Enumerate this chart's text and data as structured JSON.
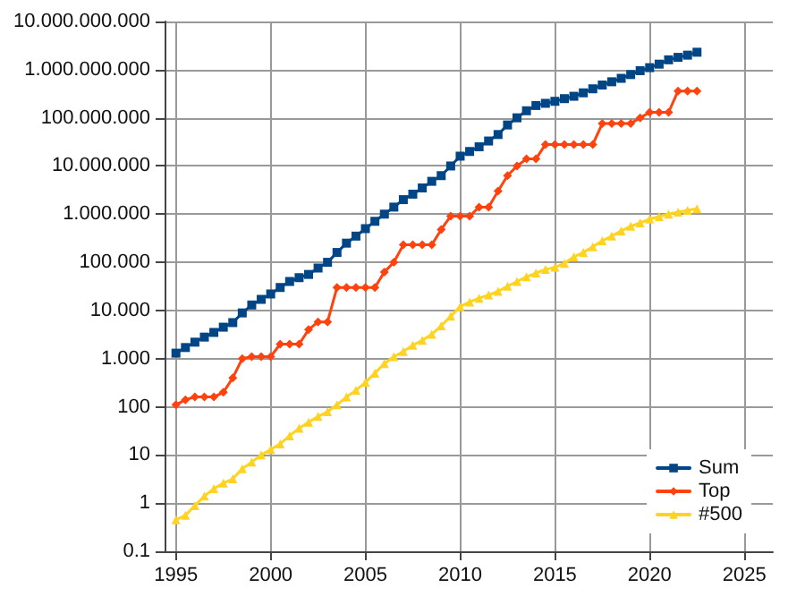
{
  "chart_data": {
    "type": "line",
    "x": [
      1995,
      1995.5,
      1996,
      1996.5,
      1997,
      1997.5,
      1998,
      1998.5,
      1999,
      1999.5,
      2000,
      2000.5,
      2001,
      2001.5,
      2002,
      2002.5,
      2003,
      2003.5,
      2004,
      2004.5,
      2005,
      2005.5,
      2006,
      2006.5,
      2007,
      2007.5,
      2008,
      2008.5,
      2009,
      2009.5,
      2010,
      2010.5,
      2011,
      2011.5,
      2012,
      2012.5,
      2013,
      2013.5,
      2014,
      2014.5,
      2015,
      2015.5,
      2016,
      2016.5,
      2017,
      2017.5,
      2018,
      2018.5,
      2019,
      2019.5,
      2020,
      2020.5,
      2021,
      2021.5,
      2022,
      2022.5
    ],
    "series": [
      {
        "name": "Sum",
        "color": "#004586",
        "marker": "square",
        "values": [
          1300,
          1700,
          2200,
          2800,
          3500,
          4500,
          5600,
          8900,
          13000,
          17000,
          22000,
          30000,
          40000,
          48000,
          56000,
          76000,
          100000,
          160000,
          250000,
          350000,
          500000,
          710000,
          1000000,
          1400000,
          2000000,
          2600000,
          3500000,
          4800000,
          6300000,
          10000000,
          16000000,
          20000000,
          25000000,
          33000000,
          45000000,
          71000000,
          100000000,
          140000000,
          180000000,
          200000000,
          220000000,
          250000000,
          280000000,
          330000000,
          400000000,
          480000000,
          560000000,
          660000000,
          790000000,
          950000000,
          1100000000,
          1300000000,
          1600000000,
          1800000000,
          2000000000,
          2300000000
        ]
      },
      {
        "name": "Top",
        "color": "#ff420e",
        "marker": "diamond",
        "values": [
          110,
          140,
          160,
          160,
          160,
          200,
          400,
          1000,
          1100,
          1100,
          1100,
          2000,
          2000,
          2000,
          4000,
          5800,
          5800,
          30000,
          30000,
          30000,
          30000,
          30000,
          63000,
          100000,
          230000,
          230000,
          230000,
          230000,
          480000,
          910000,
          910000,
          910000,
          1400000,
          1400000,
          3000000,
          6300000,
          10000000,
          14000000,
          14000000,
          28000000,
          28000000,
          28000000,
          28000000,
          28000000,
          28000000,
          76000000,
          76000000,
          76000000,
          76000000,
          100000000,
          130000000,
          130000000,
          130000000,
          360000000,
          360000000,
          360000000
        ]
      },
      {
        "name": "#500",
        "color": "#ffd320",
        "marker": "triangle",
        "values": [
          0.45,
          0.56,
          0.89,
          1.4,
          2,
          2.6,
          3.2,
          5.2,
          7.1,
          10,
          13,
          17,
          25,
          36,
          48,
          63,
          79,
          110,
          160,
          220,
          320,
          500,
          790,
          1100,
          1400,
          1900,
          2400,
          3200,
          4800,
          7600,
          12000,
          15000,
          18000,
          21000,
          25000,
          32000,
          40000,
          50000,
          60000,
          71000,
          79000,
          95000,
          130000,
          160000,
          210000,
          280000,
          350000,
          450000,
          560000,
          660000,
          790000,
          890000,
          1000000,
          1100000,
          1200000,
          1300000
        ]
      }
    ],
    "xlim": [
      1994.4,
      2026.5
    ],
    "xticks": [
      1995,
      2000,
      2005,
      2010,
      2015,
      2020,
      2025
    ],
    "log": "y",
    "ylim": [
      0.1,
      10000000000
    ],
    "yticks": [
      {
        "value": 0.1,
        "label": "0.1"
      },
      {
        "value": 1,
        "label": "1"
      },
      {
        "value": 10,
        "label": "10"
      },
      {
        "value": 100,
        "label": "100"
      },
      {
        "value": 1000,
        "label": "1.000"
      },
      {
        "value": 10000,
        "label": "10.000"
      },
      {
        "value": 100000,
        "label": "100.000"
      },
      {
        "value": 1000000,
        "label": "1.000.000"
      },
      {
        "value": 10000000,
        "label": "10.000.000"
      },
      {
        "value": 100000000,
        "label": "100.000.000"
      },
      {
        "value": 1000000000,
        "label": "1.000.000.000"
      },
      {
        "value": 10000000000,
        "label": "10.000.000.000"
      }
    ],
    "grid": true,
    "legend": "bottom right"
  }
}
